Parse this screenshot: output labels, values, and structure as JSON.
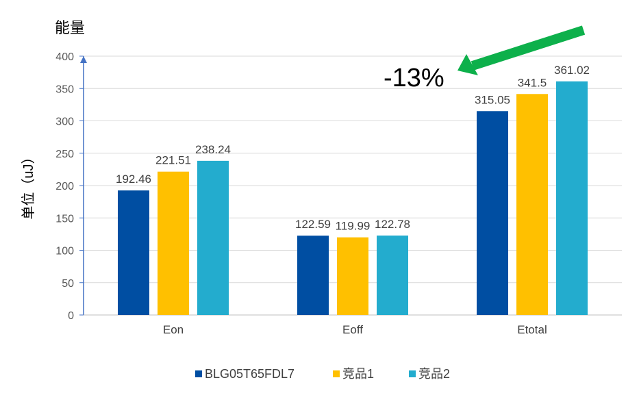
{
  "chart_data": {
    "type": "bar",
    "title": "",
    "ylabel_top": "能量",
    "ylabel": "单位（uJ）",
    "xlabel": "",
    "categories": [
      "Eon",
      "Eoff",
      "Etotal"
    ],
    "series": [
      {
        "name": "BLG05T65FDL7",
        "color": "#004EA2",
        "values": [
          192.46,
          122.59,
          315.05
        ],
        "labels": [
          "192.46",
          "122.59",
          "315.05"
        ]
      },
      {
        "name": "竞品1",
        "color": "#FFC000",
        "values": [
          221.51,
          119.99,
          341.5
        ],
        "labels": [
          "221.51",
          "119.99",
          "341.5"
        ]
      },
      {
        "name": "竞品2",
        "color": "#23ACCE",
        "values": [
          238.24,
          122.78,
          361.02
        ],
        "labels": [
          "238.24",
          "122.78",
          "361.02"
        ]
      }
    ],
    "ylim": [
      0,
      400
    ],
    "yticks": [
      0,
      50,
      100,
      150,
      200,
      250,
      300,
      350,
      400
    ],
    "grid": true,
    "legend": "bottom",
    "annotation": {
      "text": "-13%",
      "arrow_color": "#0DB04B"
    }
  }
}
